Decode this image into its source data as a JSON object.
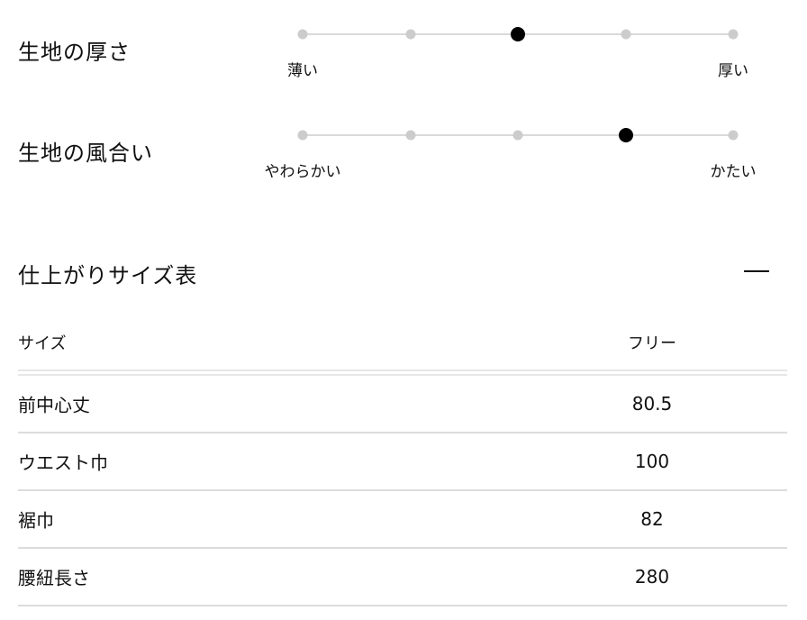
{
  "attributes": [
    {
      "label": "生地の厚さ",
      "min_label": "薄い",
      "max_label": "厚い",
      "steps": 5,
      "selected": 3
    },
    {
      "label": "生地の風合い",
      "min_label": "やわらかい",
      "max_label": "かたい",
      "steps": 5,
      "selected": 4
    }
  ],
  "size_table": {
    "title": "仕上がりサイズ表",
    "collapse_icon": "minus-icon",
    "header": {
      "key": "サイズ",
      "value": "フリー"
    },
    "rows": [
      {
        "key": "前中心丈",
        "value": "80.5"
      },
      {
        "key": "ウエスト巾",
        "value": "100"
      },
      {
        "key": "裾巾",
        "value": "82"
      },
      {
        "key": "腰紐長さ",
        "value": "280"
      }
    ]
  },
  "colors": {
    "active_dot": "#000000",
    "inactive_dot": "#cccccc",
    "track": "#d9d9d9"
  }
}
